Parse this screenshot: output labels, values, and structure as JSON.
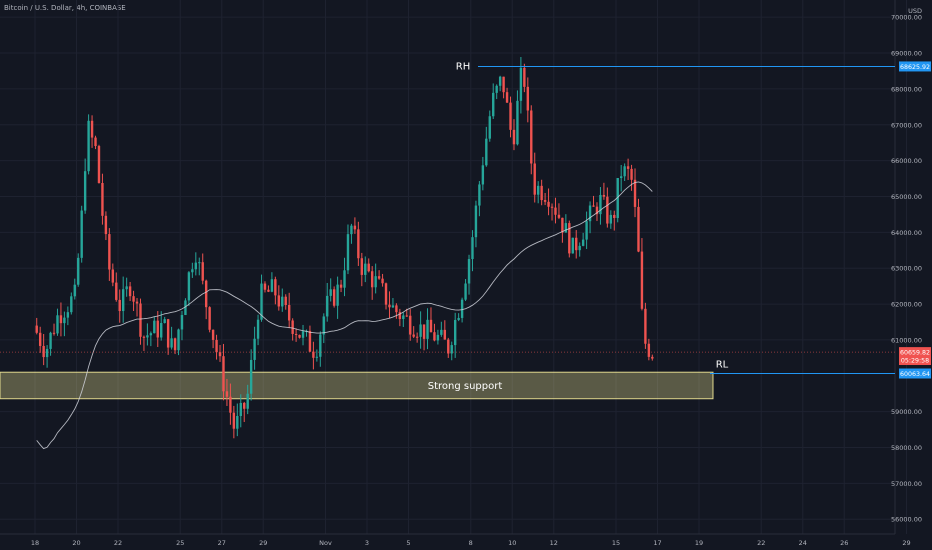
{
  "header": {
    "symbol_line": "Bitcoin / U.S. Dollar, 4h, COINBASE"
  },
  "chart_data": {
    "type": "candlestick",
    "currency_label": "USD",
    "ylim": [
      55700,
      70200
    ],
    "y_ticks": [
      {
        "v": 70000,
        "label": "70000.00"
      },
      {
        "v": 69000,
        "label": "69000.00"
      },
      {
        "v": 68000,
        "label": "68000.00"
      },
      {
        "v": 67000,
        "label": "67000.00"
      },
      {
        "v": 66000,
        "label": "66000.00"
      },
      {
        "v": 65000,
        "label": "65000.00"
      },
      {
        "v": 64000,
        "label": "64000.00"
      },
      {
        "v": 63000,
        "label": "63000.00"
      },
      {
        "v": 62000,
        "label": "62000.00"
      },
      {
        "v": 61000,
        "label": "61000.00"
      },
      {
        "v": 59000,
        "label": "59000.00"
      },
      {
        "v": 58000,
        "label": "58000.00"
      },
      {
        "v": 57000,
        "label": "57000.00"
      },
      {
        "v": 56000,
        "label": "56000.00"
      }
    ],
    "x_ticks": [
      {
        "day": 0,
        "label": "18"
      },
      {
        "day": 2,
        "label": "20"
      },
      {
        "day": 4,
        "label": "22"
      },
      {
        "day": 7,
        "label": "25"
      },
      {
        "day": 9,
        "label": "27"
      },
      {
        "day": 11,
        "label": "29"
      },
      {
        "day": 14,
        "label": "Nov"
      },
      {
        "day": 16,
        "label": "3"
      },
      {
        "day": 18,
        "label": "5"
      },
      {
        "day": 21,
        "label": "8"
      },
      {
        "day": 23,
        "label": "10"
      },
      {
        "day": 25,
        "label": "12"
      },
      {
        "day": 28,
        "label": "15"
      },
      {
        "day": 30,
        "label": "17"
      },
      {
        "day": 32,
        "label": "19"
      },
      {
        "day": 35,
        "label": "22"
      },
      {
        "day": 37,
        "label": "24"
      },
      {
        "day": 39,
        "label": "26"
      },
      {
        "day": 42,
        "label": "29"
      }
    ],
    "price_badges": [
      {
        "label": "68625.92",
        "price": 68626,
        "color": "#2196f3"
      },
      {
        "label": "60659.82",
        "price": 60660,
        "color": "#f05350"
      },
      {
        "label": "05:29:58",
        "price": 60440,
        "color": "#f05350"
      },
      {
        "label": "60063.64",
        "price": 60064,
        "color": "#2196f3"
      }
    ],
    "annotations": {
      "rh_label": "RH",
      "rh_price": 68626,
      "rl_label": "RL",
      "rl_price": 60064,
      "support_label": "Strong support",
      "support_top": 60100,
      "support_bottom": 59360,
      "current_price": 60660
    },
    "colors": {
      "up": "#26a69a",
      "down": "#ef5350",
      "ma": "#d1d4dc",
      "level": "#2196f3",
      "zone": "#fff59d"
    },
    "anchors": [
      {
        "day": 0.0,
        "price": 61400
      },
      {
        "day": 0.6,
        "price": 60700
      },
      {
        "day": 1.2,
        "price": 61700
      },
      {
        "day": 2.0,
        "price": 62200
      },
      {
        "day": 2.3,
        "price": 64100
      },
      {
        "day": 2.6,
        "price": 66950
      },
      {
        "day": 3.0,
        "price": 66300
      },
      {
        "day": 3.6,
        "price": 63100
      },
      {
        "day": 4.2,
        "price": 61900
      },
      {
        "day": 4.7,
        "price": 62600
      },
      {
        "day": 5.3,
        "price": 61100
      },
      {
        "day": 6.3,
        "price": 61400
      },
      {
        "day": 6.8,
        "price": 60600
      },
      {
        "day": 7.2,
        "price": 62000
      },
      {
        "day": 7.8,
        "price": 63600
      },
      {
        "day": 8.3,
        "price": 62100
      },
      {
        "day": 9.1,
        "price": 60000
      },
      {
        "day": 9.7,
        "price": 58500
      },
      {
        "day": 10.3,
        "price": 59300
      },
      {
        "day": 10.9,
        "price": 62200
      },
      {
        "day": 11.6,
        "price": 62400
      },
      {
        "day": 12.1,
        "price": 61800
      },
      {
        "day": 12.8,
        "price": 61200
      },
      {
        "day": 13.6,
        "price": 60700
      },
      {
        "day": 14.1,
        "price": 61900
      },
      {
        "day": 14.8,
        "price": 62500
      },
      {
        "day": 15.3,
        "price": 64200
      },
      {
        "day": 15.8,
        "price": 63100
      },
      {
        "day": 16.5,
        "price": 62600
      },
      {
        "day": 17.3,
        "price": 61900
      },
      {
        "day": 17.9,
        "price": 61600
      },
      {
        "day": 18.7,
        "price": 61300
      },
      {
        "day": 19.4,
        "price": 61100
      },
      {
        "day": 20.0,
        "price": 60800
      },
      {
        "day": 20.5,
        "price": 61900
      },
      {
        "day": 21.1,
        "price": 63600
      },
      {
        "day": 21.6,
        "price": 65800
      },
      {
        "day": 22.1,
        "price": 67600
      },
      {
        "day": 22.6,
        "price": 68300
      },
      {
        "day": 23.1,
        "price": 66500
      },
      {
        "day": 23.6,
        "price": 68700
      },
      {
        "day": 24.1,
        "price": 65300
      },
      {
        "day": 24.8,
        "price": 65100
      },
      {
        "day": 25.4,
        "price": 64400
      },
      {
        "day": 26.0,
        "price": 63500
      },
      {
        "day": 26.6,
        "price": 64200
      },
      {
        "day": 27.3,
        "price": 64900
      },
      {
        "day": 27.9,
        "price": 64200
      },
      {
        "day": 28.3,
        "price": 65700
      },
      {
        "day": 28.8,
        "price": 65600
      },
      {
        "day": 29.1,
        "price": 64000
      },
      {
        "day": 29.4,
        "price": 61000
      },
      {
        "day": 29.8,
        "price": 60660
      }
    ]
  }
}
